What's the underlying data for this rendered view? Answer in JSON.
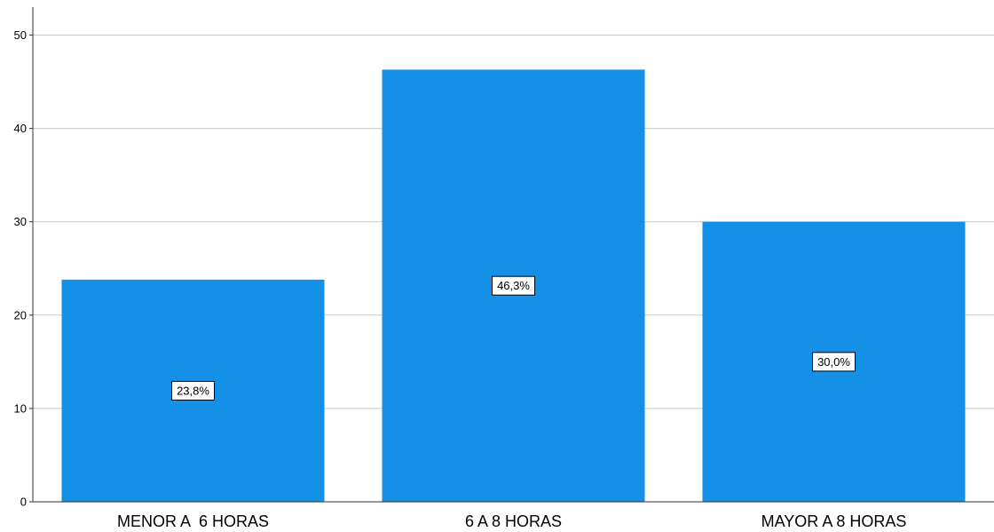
{
  "chart_data": {
    "type": "bar",
    "categories": [
      "MENOR A  6 HORAS",
      "6 A 8 HORAS",
      "MAYOR A 8 HORAS"
    ],
    "values": [
      23.8,
      46.3,
      30.0
    ],
    "data_labels": [
      "23,8%",
      "46,3%",
      "30,0%"
    ],
    "yticks": [
      "0",
      "10",
      "20",
      "30",
      "40",
      "50"
    ],
    "ylim": [
      0,
      53
    ],
    "grid": true,
    "bar_color": "#1490E6",
    "title": "",
    "xlabel": "",
    "ylabel": ""
  }
}
